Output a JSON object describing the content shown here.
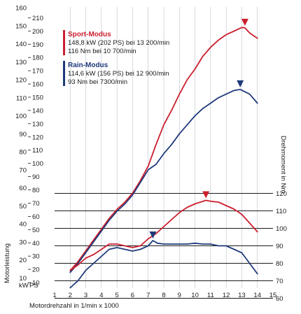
{
  "chart_data": {
    "type": "line",
    "xlabel": "Motordrehzahl in 1/min x 1000",
    "x_ticks": [
      1,
      2,
      3,
      4,
      5,
      6,
      7,
      8,
      9,
      10,
      11,
      12,
      13,
      14,
      15
    ],
    "xlim": [
      1,
      15
    ],
    "ylabel_left": "Motorleistung",
    "units_left": [
      "kW",
      "PS"
    ],
    "kw_ticks": [
      10,
      20,
      30,
      40,
      50,
      60,
      70,
      80,
      90,
      100,
      110,
      120,
      130,
      140,
      150,
      160
    ],
    "kw_lim": [
      0,
      160
    ],
    "ps_ticks": [
      10,
      20,
      30,
      40,
      50,
      60,
      70,
      80,
      90,
      100,
      110,
      120,
      130,
      140,
      150,
      160,
      170,
      180,
      190,
      200,
      210
    ],
    "ylabel_right": "Drehmoment in Nm",
    "nm_ticks": [
      60,
      70,
      80,
      90,
      100,
      110,
      120
    ],
    "nm_lim": [
      55,
      125
    ],
    "colors": {
      "sport": "#cc1f2e",
      "rain": "#1f3a7a"
    },
    "legend": [
      {
        "id": "sport",
        "title": "Sport-Modus",
        "lines": [
          "148,8 kW (202 PS) bei 13 200/min",
          "116 Nm bei 10 700/min"
        ]
      },
      {
        "id": "rain",
        "title": "Rain-Modus",
        "lines": [
          "114,6 kW (156 PS) bei 12 900/min",
          "93 Nm bei 7300/min"
        ]
      }
    ],
    "series": [
      {
        "id": "sport-power",
        "axis": "kw",
        "color": "#cc1f2e",
        "points": [
          [
            2,
            14
          ],
          [
            2.5,
            19
          ],
          [
            3,
            25
          ],
          [
            3.5,
            31
          ],
          [
            4,
            37
          ],
          [
            4.5,
            43
          ],
          [
            5,
            48
          ],
          [
            5.5,
            52
          ],
          [
            6,
            57
          ],
          [
            6.5,
            64
          ],
          [
            7,
            72
          ],
          [
            7.5,
            84
          ],
          [
            8,
            95
          ],
          [
            8.5,
            103
          ],
          [
            9,
            112
          ],
          [
            9.5,
            120
          ],
          [
            10,
            126
          ],
          [
            10.5,
            133
          ],
          [
            11,
            138
          ],
          [
            11.5,
            142
          ],
          [
            12,
            145
          ],
          [
            12.5,
            147
          ],
          [
            13,
            149
          ],
          [
            13.2,
            148.8
          ],
          [
            13.5,
            146
          ],
          [
            14,
            143
          ]
        ]
      },
      {
        "id": "rain-power",
        "axis": "kw",
        "color": "#1f3a7a",
        "points": [
          [
            2,
            13
          ],
          [
            2.5,
            18
          ],
          [
            3,
            24
          ],
          [
            3.5,
            30
          ],
          [
            4,
            36
          ],
          [
            4.5,
            42
          ],
          [
            5,
            47
          ],
          [
            5.5,
            51
          ],
          [
            6,
            56
          ],
          [
            6.5,
            63
          ],
          [
            7,
            70
          ],
          [
            7.5,
            73
          ],
          [
            8,
            79
          ],
          [
            8.5,
            84
          ],
          [
            9,
            90
          ],
          [
            9.5,
            95
          ],
          [
            10,
            100
          ],
          [
            10.5,
            104
          ],
          [
            11,
            107
          ],
          [
            11.5,
            110
          ],
          [
            12,
            112
          ],
          [
            12.5,
            114
          ],
          [
            12.9,
            114.6
          ],
          [
            13.5,
            112
          ],
          [
            14,
            107
          ]
        ]
      },
      {
        "id": "sport-torque",
        "axis": "nm",
        "color": "#cc1f2e",
        "points": [
          [
            2,
            76
          ],
          [
            2.5,
            79
          ],
          [
            3,
            83
          ],
          [
            3.5,
            85
          ],
          [
            4,
            88
          ],
          [
            4.5,
            91
          ],
          [
            5,
            91
          ],
          [
            5.5,
            90
          ],
          [
            6,
            89
          ],
          [
            6.5,
            90
          ],
          [
            7,
            94
          ],
          [
            7.5,
            97
          ],
          [
            8,
            101
          ],
          [
            8.5,
            105
          ],
          [
            9,
            109
          ],
          [
            9.5,
            112
          ],
          [
            10,
            114
          ],
          [
            10.7,
            116
          ],
          [
            11,
            115.5
          ],
          [
            11.5,
            115
          ],
          [
            12,
            113
          ],
          [
            12.5,
            111
          ],
          [
            13,
            108
          ],
          [
            13.5,
            103
          ],
          [
            14,
            98
          ]
        ]
      },
      {
        "id": "rain-torque",
        "axis": "nm",
        "color": "#1f3a7a",
        "points": [
          [
            2,
            66
          ],
          [
            2.5,
            70
          ],
          [
            3,
            76
          ],
          [
            3.5,
            80
          ],
          [
            4,
            84
          ],
          [
            4.5,
            88
          ],
          [
            5,
            89
          ],
          [
            5.5,
            88
          ],
          [
            6,
            87
          ],
          [
            6.5,
            88
          ],
          [
            7,
            90
          ],
          [
            7.3,
            93
          ],
          [
            7.6,
            91.5
          ],
          [
            8,
            91
          ],
          [
            8.5,
            91
          ],
          [
            9,
            91
          ],
          [
            9.5,
            91
          ],
          [
            10,
            91.5
          ],
          [
            10.5,
            91
          ],
          [
            11,
            91
          ],
          [
            11.5,
            90
          ],
          [
            12,
            90
          ],
          [
            12.5,
            88
          ],
          [
            13,
            86
          ],
          [
            13.5,
            80
          ],
          [
            14,
            74
          ]
        ]
      }
    ],
    "markers": [
      {
        "series": "sport-power",
        "x": 13.2,
        "value": 148.8,
        "color": "#cc1f2e"
      },
      {
        "series": "rain-power",
        "x": 12.9,
        "value": 114.6,
        "color": "#1f3a7a"
      },
      {
        "series": "sport-torque",
        "x": 10.7,
        "value": 116,
        "color": "#cc1f2e"
      },
      {
        "series": "rain-torque",
        "x": 7.3,
        "value": 93,
        "color": "#1f3a7a"
      }
    ]
  }
}
